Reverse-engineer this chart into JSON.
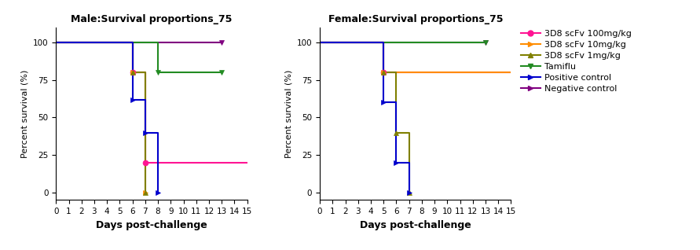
{
  "male_title": "Male:Survival proportions_75",
  "female_title": "Female:Survival proportions_75",
  "xlabel": "Days post-challenge",
  "ylabel": "Percent survival (%)",
  "xlim": [
    0,
    15
  ],
  "ylim": [
    -5,
    110
  ],
  "xticks": [
    0,
    1,
    2,
    3,
    4,
    5,
    6,
    7,
    8,
    9,
    10,
    11,
    12,
    13,
    14,
    15
  ],
  "yticks": [
    0,
    25,
    50,
    75,
    100
  ],
  "colors": {
    "100mg": "#ff1493",
    "10mg": "#ff8c00",
    "1mg": "#808000",
    "tamiflu": "#228b22",
    "positive": "#0000cc",
    "negative": "#800080"
  },
  "male": {
    "neg_ctrl": {
      "x": [
        0,
        13
      ],
      "y": [
        100,
        100
      ]
    },
    "pos_ctrl": {
      "x": [
        0,
        6,
        6,
        7,
        7,
        8,
        8
      ],
      "y": [
        100,
        100,
        62,
        62,
        40,
        40,
        0
      ]
    },
    "100mg": {
      "x": [
        0,
        6,
        6,
        7,
        7,
        15
      ],
      "y": [
        100,
        100,
        80,
        80,
        20,
        20
      ]
    },
    "10mg": {
      "x": [
        0,
        6,
        6,
        7,
        7
      ],
      "y": [
        100,
        100,
        80,
        80,
        0
      ]
    },
    "1mg": {
      "x": [
        0,
        6,
        6,
        7,
        7
      ],
      "y": [
        100,
        100,
        80,
        80,
        0
      ]
    },
    "tamiflu": {
      "x": [
        0,
        8,
        8,
        13
      ],
      "y": [
        100,
        100,
        80,
        80
      ]
    },
    "markers": {
      "100mg": {
        "x": [
          6,
          7
        ],
        "y": [
          80,
          20
        ]
      },
      "10mg": {
        "x": [
          6,
          7
        ],
        "y": [
          80,
          0
        ]
      },
      "1mg": {
        "x": [
          6,
          7
        ],
        "y": [
          80,
          0
        ]
      },
      "tamiflu": {
        "x": [
          8,
          13
        ],
        "y": [
          80,
          80
        ]
      },
      "pos_ctrl": {
        "x": [
          6,
          7,
          8
        ],
        "y": [
          62,
          40,
          0
        ]
      },
      "neg_ctrl": {
        "x": [
          13
        ],
        "y": [
          100
        ]
      }
    }
  },
  "female": {
    "neg_ctrl": {
      "x": [
        0,
        13
      ],
      "y": [
        100,
        100
      ]
    },
    "pos_ctrl": {
      "x": [
        0,
        5,
        5,
        6,
        6,
        7,
        7
      ],
      "y": [
        100,
        100,
        60,
        60,
        20,
        20,
        0
      ]
    },
    "100mg": {
      "x": [
        0,
        5,
        5,
        15
      ],
      "y": [
        100,
        100,
        80,
        80
      ]
    },
    "10mg": {
      "x": [
        0,
        5,
        5,
        15
      ],
      "y": [
        100,
        100,
        80,
        80
      ]
    },
    "1mg": {
      "x": [
        0,
        5,
        5,
        6,
        6,
        7,
        7
      ],
      "y": [
        100,
        100,
        80,
        80,
        40,
        40,
        0
      ]
    },
    "tamiflu": {
      "x": [
        0,
        13
      ],
      "y": [
        100,
        100
      ]
    },
    "markers": {
      "100mg": {
        "x": [
          5
        ],
        "y": [
          80
        ]
      },
      "10mg": {
        "x": [
          5
        ],
        "y": [
          80
        ]
      },
      "1mg": {
        "x": [
          5,
          6,
          7
        ],
        "y": [
          80,
          40,
          0
        ]
      },
      "tamiflu": {
        "x": [
          13
        ],
        "y": [
          100
        ]
      },
      "pos_ctrl": {
        "x": [
          5,
          6,
          7
        ],
        "y": [
          60,
          20,
          0
        ]
      },
      "neg_ctrl": {
        "x": [
          13
        ],
        "y": [
          100
        ]
      }
    }
  },
  "legend_labels": [
    "3D8 scFv 100mg/kg",
    "3D8 scFv 10mg/kg",
    "3D8 scFv 1mg/kg",
    "Tamiflu",
    "Positive control",
    "Negative control"
  ],
  "legend_markers": [
    "o",
    ">",
    "^",
    "v",
    ">",
    ">"
  ]
}
